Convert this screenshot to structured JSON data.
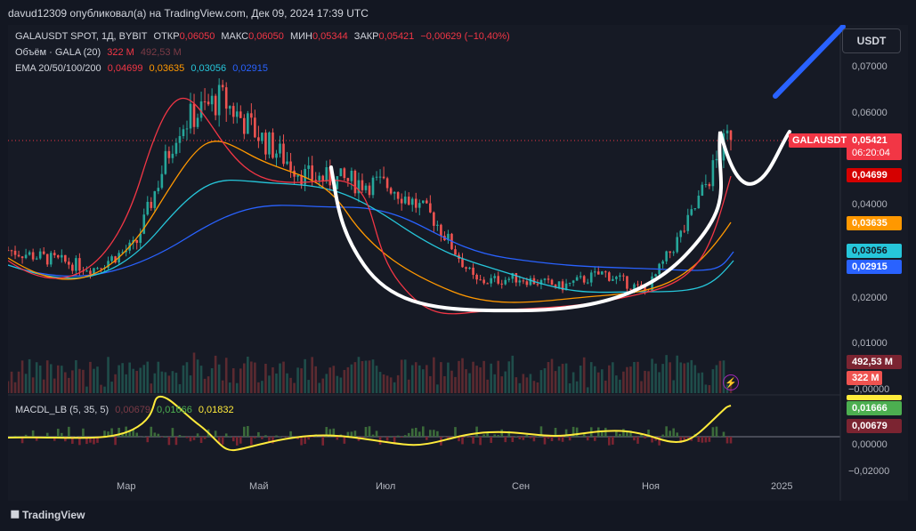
{
  "header": {
    "publish_line": "davud12309 опубликовал(а) на TradingView.com, Дек 09, 2024 17:39 UTC"
  },
  "legend": {
    "symbol": "GALAUSDT SPOT, 1Д, BYBIT",
    "open_label": "ОТКР",
    "open_value": "0,06050",
    "high_label": "МАКС",
    "high_value": "0,06050",
    "low_label": "МИН",
    "low_value": "0,05344",
    "close_label": "ЗАКР",
    "close_value": "0,05421",
    "change": "−0,00629 (−10,40%)",
    "volume_label": "Объём · GALA (20)",
    "volume_value": "322 M",
    "volume_ma": "492,53 M",
    "ema_label": "EMA 20/50/100/200",
    "ema20": "0,04699",
    "ema50": "0,03635",
    "ema100": "0,03056",
    "ema200": "0,02915",
    "macd_label": "MACDL_LB (5, 35, 5)",
    "macd_v1": "0,00679",
    "macd_v2": "0,01666",
    "macd_v3": "0,01832"
  },
  "currency_button": "USDT",
  "price_axis": {
    "labels": [
      "0,07000",
      "0,06000",
      "0,04000",
      "0,02000",
      "0,01000",
      "−0,00000",
      "0,00000",
      "−0,02000"
    ],
    "tags": {
      "last_price": "0,05421",
      "countdown": "06:20:04",
      "ema20": "0,04699",
      "ema50": "0,03635",
      "ema100": "0,03056",
      "ema200": "0,02915",
      "vol_ma": "492,53 M",
      "vol": "322 M",
      "macd_signal": "0,01666",
      "macd_hist": "0,00679"
    }
  },
  "symbol_tag": "GALAUSDT",
  "time_axis": [
    "Мар",
    "Май",
    "Июл",
    "Сен",
    "Ноя",
    "2025"
  ],
  "colors": {
    "up": "#26a69a",
    "down": "#ef5350",
    "ema20": "#f23645",
    "ema50": "#ff9800",
    "ema100": "#26c6da",
    "ema200": "#2962ff",
    "macd": "#ffeb3b",
    "drawing": "#ffffff",
    "arrow": "#2962ff"
  },
  "chart_data": {
    "type": "line",
    "x": [
      0,
      20,
      40,
      60,
      80,
      100,
      120,
      140,
      160,
      180,
      200,
      220,
      240,
      260,
      280,
      300,
      320,
      340
    ],
    "series": [
      {
        "values": [
          0.028,
          0.026,
          0.024,
          0.029,
          0.055,
          0.061,
          0.052,
          0.044,
          0.043,
          0.042,
          0.035,
          0.021,
          0.022,
          0.02,
          0.023,
          0.019,
          0.034,
          0.054
        ]
      }
    ],
    "yscale": "linear",
    "ylim": [
      0,
      0.075
    ]
  },
  "footer": {
    "brand": "TradingView"
  }
}
